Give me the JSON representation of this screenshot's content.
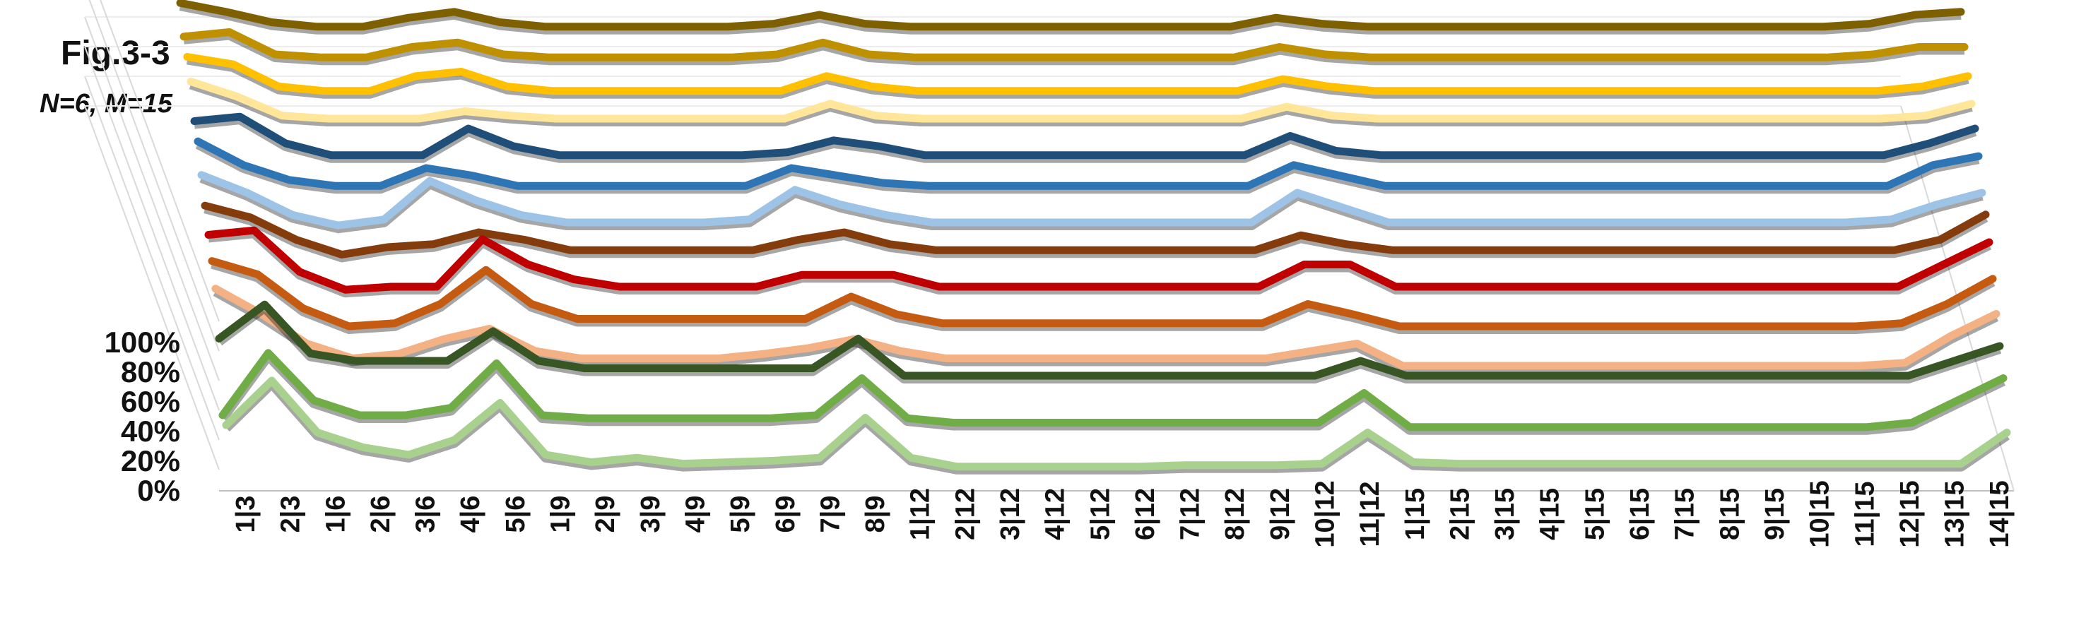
{
  "chart_data": {
    "type": "line",
    "title": "Fig.3-3",
    "subtitle": "N=6, M=15",
    "xlabel": "",
    "ylabel": "",
    "categories": [
      "1|3",
      "2|3",
      "1|6",
      "2|6",
      "3|6",
      "4|6",
      "5|6",
      "1|9",
      "2|9",
      "3|9",
      "4|9",
      "5|9",
      "6|9",
      "7|9",
      "8|9",
      "1|12",
      "2|12",
      "3|12",
      "4|12",
      "5|12",
      "6|12",
      "7|12",
      "8|12",
      "9|12",
      "10|12",
      "11|12",
      "1|15",
      "2|15",
      "3|15",
      "4|15",
      "5|15",
      "6|15",
      "7|15",
      "8|15",
      "9|15",
      "10|15",
      "11|15",
      "12|15",
      "13|15",
      "14|15"
    ],
    "ylim": [
      0,
      1
    ],
    "yticks": [
      "0%",
      "20%",
      "40%",
      "60%",
      "80%",
      "100%"
    ],
    "legend": "none",
    "series": [
      {
        "color": "#a9d18e",
        "values": [
          0.3,
          0.6,
          0.25,
          0.15,
          0.1,
          0.2,
          0.45,
          0.1,
          0.05,
          0.08,
          0.04,
          0.05,
          0.06,
          0.08,
          0.35,
          0.08,
          0.02,
          0.02,
          0.02,
          0.02,
          0.02,
          0.03,
          0.03,
          0.03,
          0.04,
          0.25,
          0.05,
          0.04,
          0.04,
          0.04,
          0.04,
          0.04,
          0.04,
          0.04,
          0.04,
          0.04,
          0.04,
          0.04,
          0.04,
          0.25
        ]
      },
      {
        "color": "#70ad47",
        "values": [
          0.2,
          0.62,
          0.3,
          0.2,
          0.2,
          0.25,
          0.55,
          0.2,
          0.18,
          0.18,
          0.18,
          0.18,
          0.18,
          0.2,
          0.45,
          0.18,
          0.15,
          0.15,
          0.15,
          0.15,
          0.15,
          0.15,
          0.15,
          0.15,
          0.15,
          0.35,
          0.12,
          0.12,
          0.12,
          0.12,
          0.12,
          0.12,
          0.12,
          0.12,
          0.12,
          0.12,
          0.12,
          0.15,
          0.3,
          0.45
        ]
      },
      {
        "color": "#375623",
        "values": [
          0.55,
          0.78,
          0.45,
          0.4,
          0.4,
          0.4,
          0.6,
          0.4,
          0.35,
          0.35,
          0.35,
          0.35,
          0.35,
          0.35,
          0.55,
          0.3,
          0.3,
          0.3,
          0.3,
          0.3,
          0.3,
          0.3,
          0.3,
          0.3,
          0.3,
          0.4,
          0.3,
          0.3,
          0.3,
          0.3,
          0.3,
          0.3,
          0.3,
          0.3,
          0.3,
          0.3,
          0.3,
          0.3,
          0.4,
          0.5
        ]
      },
      {
        "color": "#f4b183",
        "values": [
          0.72,
          0.55,
          0.35,
          0.25,
          0.28,
          0.38,
          0.45,
          0.3,
          0.25,
          0.25,
          0.25,
          0.25,
          0.28,
          0.32,
          0.38,
          0.3,
          0.25,
          0.25,
          0.25,
          0.25,
          0.25,
          0.25,
          0.25,
          0.25,
          0.3,
          0.35,
          0.2,
          0.2,
          0.2,
          0.2,
          0.2,
          0.2,
          0.2,
          0.2,
          0.2,
          0.2,
          0.2,
          0.22,
          0.4,
          0.55
        ]
      },
      {
        "color": "#c55a11",
        "values": [
          0.74,
          0.65,
          0.42,
          0.3,
          0.32,
          0.45,
          0.68,
          0.45,
          0.35,
          0.35,
          0.35,
          0.35,
          0.35,
          0.35,
          0.5,
          0.38,
          0.32,
          0.32,
          0.32,
          0.32,
          0.32,
          0.32,
          0.32,
          0.32,
          0.45,
          0.38,
          0.3,
          0.3,
          0.3,
          0.3,
          0.3,
          0.3,
          0.3,
          0.3,
          0.3,
          0.3,
          0.3,
          0.32,
          0.45,
          0.62
        ]
      },
      {
        "color": "#c00000",
        "values": [
          0.75,
          0.78,
          0.5,
          0.38,
          0.4,
          0.4,
          0.72,
          0.55,
          0.45,
          0.4,
          0.4,
          0.4,
          0.4,
          0.48,
          0.48,
          0.48,
          0.4,
          0.4,
          0.4,
          0.4,
          0.4,
          0.4,
          0.4,
          0.4,
          0.55,
          0.55,
          0.4,
          0.4,
          0.4,
          0.4,
          0.4,
          0.4,
          0.4,
          0.4,
          0.4,
          0.4,
          0.4,
          0.4,
          0.55,
          0.7
        ]
      },
      {
        "color": "#843c0c",
        "values": [
          0.78,
          0.7,
          0.55,
          0.45,
          0.5,
          0.52,
          0.6,
          0.55,
          0.48,
          0.48,
          0.48,
          0.48,
          0.48,
          0.55,
          0.6,
          0.52,
          0.48,
          0.48,
          0.48,
          0.48,
          0.48,
          0.48,
          0.48,
          0.48,
          0.58,
          0.52,
          0.48,
          0.48,
          0.48,
          0.48,
          0.48,
          0.48,
          0.48,
          0.48,
          0.48,
          0.48,
          0.48,
          0.48,
          0.55,
          0.72
        ]
      },
      {
        "color": "#9dc3e6",
        "values": [
          0.82,
          0.7,
          0.55,
          0.48,
          0.52,
          0.78,
          0.65,
          0.55,
          0.5,
          0.5,
          0.5,
          0.5,
          0.52,
          0.72,
          0.62,
          0.55,
          0.5,
          0.5,
          0.5,
          0.5,
          0.5,
          0.5,
          0.5,
          0.5,
          0.7,
          0.6,
          0.5,
          0.5,
          0.5,
          0.5,
          0.5,
          0.5,
          0.5,
          0.5,
          0.5,
          0.5,
          0.5,
          0.52,
          0.62,
          0.7
        ]
      },
      {
        "color": "#2e75b6",
        "values": [
          0.88,
          0.72,
          0.62,
          0.58,
          0.58,
          0.7,
          0.65,
          0.58,
          0.58,
          0.58,
          0.58,
          0.58,
          0.58,
          0.7,
          0.65,
          0.6,
          0.58,
          0.58,
          0.58,
          0.58,
          0.58,
          0.58,
          0.58,
          0.58,
          0.72,
          0.65,
          0.58,
          0.58,
          0.58,
          0.58,
          0.58,
          0.58,
          0.58,
          0.58,
          0.58,
          0.58,
          0.58,
          0.58,
          0.72,
          0.78
        ]
      },
      {
        "color": "#1f4e79",
        "values": [
          0.85,
          0.88,
          0.7,
          0.62,
          0.62,
          0.62,
          0.8,
          0.68,
          0.62,
          0.62,
          0.62,
          0.62,
          0.62,
          0.64,
          0.72,
          0.68,
          0.62,
          0.62,
          0.62,
          0.62,
          0.62,
          0.62,
          0.62,
          0.62,
          0.75,
          0.65,
          0.62,
          0.62,
          0.62,
          0.62,
          0.62,
          0.62,
          0.62,
          0.62,
          0.62,
          0.62,
          0.62,
          0.62,
          0.7,
          0.8
        ]
      },
      {
        "color": "#ffe699",
        "values": [
          0.95,
          0.85,
          0.72,
          0.7,
          0.7,
          0.7,
          0.75,
          0.72,
          0.7,
          0.7,
          0.7,
          0.7,
          0.7,
          0.7,
          0.8,
          0.72,
          0.7,
          0.7,
          0.7,
          0.7,
          0.7,
          0.7,
          0.7,
          0.7,
          0.78,
          0.72,
          0.7,
          0.7,
          0.7,
          0.7,
          0.7,
          0.7,
          0.7,
          0.7,
          0.7,
          0.7,
          0.7,
          0.7,
          0.72,
          0.8
        ]
      },
      {
        "color": "#ffc000",
        "values": [
          0.95,
          0.9,
          0.75,
          0.72,
          0.72,
          0.82,
          0.85,
          0.75,
          0.72,
          0.72,
          0.72,
          0.72,
          0.72,
          0.72,
          0.82,
          0.75,
          0.72,
          0.72,
          0.72,
          0.72,
          0.72,
          0.72,
          0.72,
          0.72,
          0.8,
          0.75,
          0.72,
          0.72,
          0.72,
          0.72,
          0.72,
          0.72,
          0.72,
          0.72,
          0.72,
          0.72,
          0.72,
          0.72,
          0.75,
          0.82
        ]
      },
      {
        "color": "#bf9000",
        "values": [
          0.92,
          0.95,
          0.8,
          0.78,
          0.78,
          0.85,
          0.88,
          0.8,
          0.78,
          0.78,
          0.78,
          0.78,
          0.78,
          0.8,
          0.88,
          0.8,
          0.78,
          0.78,
          0.78,
          0.78,
          0.78,
          0.78,
          0.78,
          0.78,
          0.85,
          0.8,
          0.78,
          0.78,
          0.78,
          0.78,
          0.78,
          0.78,
          0.78,
          0.78,
          0.78,
          0.78,
          0.78,
          0.8,
          0.85,
          0.85
        ]
      },
      {
        "color": "#7f6000",
        "values": [
          0.98,
          0.92,
          0.85,
          0.82,
          0.82,
          0.88,
          0.92,
          0.85,
          0.82,
          0.82,
          0.82,
          0.82,
          0.82,
          0.84,
          0.9,
          0.84,
          0.82,
          0.82,
          0.82,
          0.82,
          0.82,
          0.82,
          0.82,
          0.82,
          0.88,
          0.84,
          0.82,
          0.82,
          0.82,
          0.82,
          0.82,
          0.82,
          0.82,
          0.82,
          0.82,
          0.82,
          0.82,
          0.84,
          0.9,
          0.92
        ]
      }
    ]
  }
}
